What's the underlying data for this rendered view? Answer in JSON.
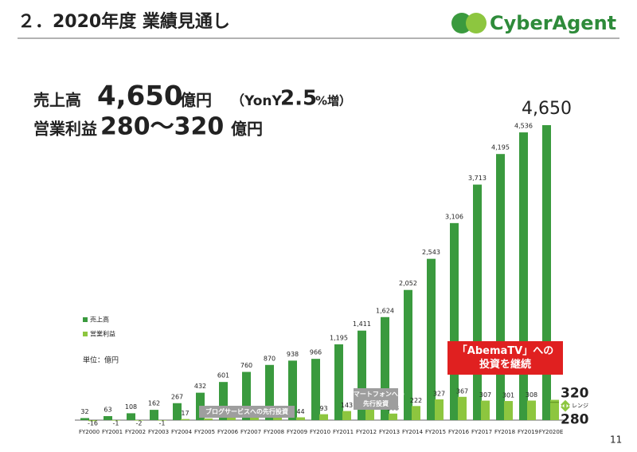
{
  "slide": {
    "title": "２．2020年度 業績見通し",
    "logo": "CyberAgent",
    "page": "11"
  },
  "headline": {
    "sales_label": "売上高",
    "sales_value": "4,650",
    "sales_unit": "億円",
    "growth_open": "（YonY",
    "growth_value": "2.5",
    "growth_unit": "%増）",
    "profit_label": "営業利益",
    "profit_value": "280〜320",
    "profit_unit": "億円"
  },
  "chart_data": {
    "type": "bar",
    "unit_note": "単位：億円",
    "categories": [
      "FY2000",
      "FY2001",
      "FY2002",
      "FY2003",
      "FY2004",
      "FY2005",
      "FY2006",
      "FY2007",
      "FY2008",
      "FY2009",
      "FY2010",
      "FY2011",
      "FY2012",
      "FY2013",
      "FY2014",
      "FY2015",
      "FY2016",
      "FY2017",
      "FY2018",
      "FY2019",
      "FY2020E"
    ],
    "series": [
      {
        "name": "売上高",
        "color": "#3a9a3e",
        "values": [
          32,
          63,
          108,
          162,
          267,
          432,
          601,
          760,
          870,
          938,
          966,
          1195,
          1411,
          1624,
          2052,
          2543,
          3106,
          3713,
          4195,
          4536,
          4650
        ],
        "value_labels": [
          "32",
          "63",
          "108",
          "162",
          "267",
          "432",
          "601",
          "760",
          "870",
          "938",
          "966",
          "1,195",
          "1,411",
          "1,624",
          "2,052",
          "2,543",
          "3,106",
          "3,713",
          "4,195",
          "4,536",
          "4,650"
        ]
      },
      {
        "name": "営業利益",
        "color": "#8dc63f",
        "values": [
          -16,
          -1,
          -2,
          -1,
          17,
          26,
          43,
          55,
          46,
          44,
          93,
          143,
          174,
          103,
          222,
          327,
          367,
          307,
          301,
          308,
          320
        ]
      }
    ],
    "range": {
      "low": 280,
      "label": "レンジ"
    },
    "annotations": [
      {
        "lines": [
          "ブログサービスへの先行投資"
        ],
        "color": "#9e9e9e"
      },
      {
        "lines": [
          "スマートフォンへの",
          "先行投資"
        ],
        "color": "#9e9e9e"
      },
      {
        "lines": [
          "「AbemaTV」への",
          "投資を継続"
        ],
        "color": "#e02020"
      }
    ]
  }
}
